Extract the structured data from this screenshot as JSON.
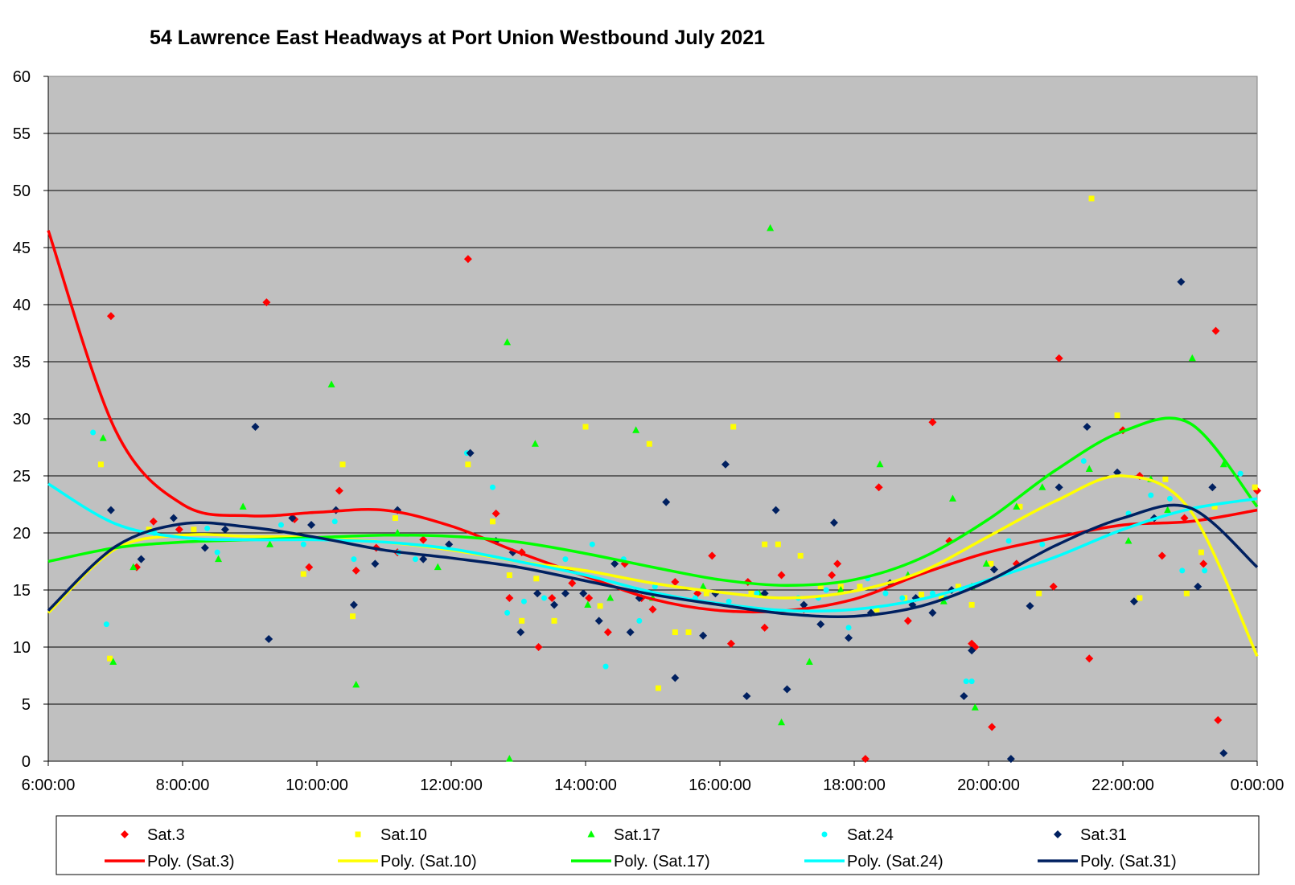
{
  "chart_data": {
    "type": "scatter",
    "title": "54 Lawrence East Headways at Port Union Westbound July 2021",
    "xlabel": "",
    "ylabel": "",
    "xlim": [
      "6:00:00",
      "0:00:00"
    ],
    "ylim": [
      0,
      60
    ],
    "x_ticks": [
      "6:00:00",
      "8:00:00",
      "10:00:00",
      "12:00:00",
      "14:00:00",
      "16:00:00",
      "18:00:00",
      "20:00:00",
      "22:00:00",
      "0:00:00"
    ],
    "y_ticks": [
      0,
      5,
      10,
      15,
      20,
      25,
      30,
      35,
      40,
      45,
      50,
      55,
      60
    ],
    "grid": true,
    "legend_position": "bottom",
    "series": [
      {
        "name": "Sat.3",
        "color": "#ff0000",
        "marker": "diamond",
        "x": [
          "6:56",
          "7:19",
          "7:34",
          "7:57",
          "9:15",
          "9:40",
          "9:53",
          "10:20",
          "10:35",
          "10:53",
          "11:12",
          "11:35",
          "12:15",
          "12:40",
          "12:52",
          "13:03",
          "13:18",
          "13:30",
          "13:48",
          "14:03",
          "14:20",
          "14:35",
          "14:50",
          "15:00",
          "15:20",
          "15:40",
          "15:53",
          "16:10",
          "16:25",
          "16:40",
          "16:55",
          "17:15",
          "17:40",
          "17:45",
          "18:10",
          "18:22",
          "18:48",
          "19:10",
          "19:25",
          "19:45",
          "19:48",
          "20:03",
          "20:25",
          "20:58",
          "21:03",
          "21:30",
          "22:00",
          "22:15",
          "22:35",
          "22:55",
          "23:12",
          "23:23",
          "23:25",
          "0:00"
        ],
        "y": [
          39,
          17,
          21,
          20.3,
          40.2,
          21.2,
          17,
          23.7,
          16.7,
          18.7,
          18.3,
          19.4,
          44,
          21.7,
          14.3,
          18.3,
          10,
          14.3,
          15.6,
          14.3,
          11.3,
          17.3,
          14.3,
          13.3,
          15.7,
          14.7,
          18,
          10.3,
          15.7,
          11.7,
          16.3,
          13.3,
          16.3,
          17.3,
          0.2,
          24,
          12.3,
          29.7,
          19.3,
          10.3,
          10,
          3,
          17.3,
          15.3,
          35.3,
          9,
          29,
          25,
          18,
          21.3,
          17.3,
          37.7,
          3.6,
          23.7
        ]
      },
      {
        "name": "Sat.10",
        "color": "#ffff00",
        "marker": "square",
        "x": [
          "6:47",
          "6:55",
          "7:30",
          "8:10",
          "9:48",
          "10:23",
          "10:32",
          "11:10",
          "12:15",
          "12:37",
          "12:52",
          "13:03",
          "13:16",
          "13:32",
          "14:00",
          "14:13",
          "14:57",
          "15:05",
          "15:20",
          "15:32",
          "15:48",
          "16:12",
          "16:28",
          "16:40",
          "16:52",
          "17:12",
          "17:30",
          "17:48",
          "18:05",
          "18:20",
          "18:45",
          "19:00",
          "19:18",
          "19:33",
          "19:45",
          "20:02",
          "20:28",
          "20:45",
          "21:32",
          "21:55",
          "22:15",
          "22:38",
          "22:57",
          "23:10",
          "23:22",
          "23:58"
        ],
        "y": [
          26,
          9,
          20.3,
          20.3,
          16.4,
          26,
          12.7,
          21.3,
          26,
          21,
          16.3,
          12.3,
          16,
          12.3,
          29.3,
          13.6,
          27.8,
          6.4,
          11.3,
          11.3,
          14.7,
          29.3,
          14.7,
          19,
          19,
          18,
          15.3,
          15.3,
          15.3,
          13.3,
          14.3,
          14.6,
          14.3,
          15.3,
          13.7,
          17.3,
          22.3,
          14.7,
          49.3,
          30.3,
          14.3,
          24.7,
          14.7,
          18.3,
          22.3,
          24
        ]
      },
      {
        "name": "Sat.17",
        "color": "#00ff00",
        "marker": "triangle",
        "x": [
          "6:49",
          "6:58",
          "7:16",
          "8:32",
          "8:54",
          "9:18",
          "10:13",
          "10:35",
          "11:12",
          "11:48",
          "12:50",
          "12:52",
          "13:15",
          "14:02",
          "14:22",
          "14:45",
          "15:00",
          "15:45",
          "16:35",
          "16:45",
          "16:55",
          "17:20",
          "17:48",
          "18:23",
          "18:48",
          "19:20",
          "19:28",
          "19:45",
          "19:48",
          "19:58",
          "20:25",
          "20:48",
          "21:30",
          "22:05",
          "22:25",
          "22:40",
          "23:02",
          "23:30"
        ],
        "y": [
          28.3,
          8.7,
          17,
          17.7,
          22.3,
          19,
          33,
          6.7,
          20,
          17,
          36.7,
          0.2,
          27.8,
          13.7,
          14.3,
          29,
          14.3,
          15.3,
          14.7,
          46.7,
          3.4,
          8.7,
          15,
          26,
          16.3,
          14,
          23,
          15.3,
          4.7,
          17.3,
          22.3,
          24,
          25.6,
          19.3,
          24.7,
          22,
          35.3,
          26
        ]
      },
      {
        "name": "Sat.24",
        "color": "#00ffff",
        "marker": "circle",
        "x": [
          "6:40",
          "6:52",
          "7:35",
          "8:22",
          "8:31",
          "9:28",
          "9:48",
          "10:16",
          "10:33",
          "11:13",
          "11:28",
          "12:14",
          "12:37",
          "12:50",
          "13:05",
          "13:23",
          "13:42",
          "14:06",
          "14:18",
          "14:34",
          "14:48",
          "15:02",
          "15:38",
          "16:08",
          "16:33",
          "17:10",
          "17:28",
          "17:35",
          "17:55",
          "18:12",
          "18:28",
          "18:43",
          "19:10",
          "19:22",
          "19:36",
          "19:40",
          "19:45",
          "20:18",
          "20:48",
          "21:25",
          "22:05",
          "22:25",
          "22:42",
          "22:53",
          "23:13",
          "23:45"
        ],
        "y": [
          28.8,
          12,
          20,
          20.4,
          18.3,
          20.7,
          19,
          21,
          17.7,
          18.3,
          17.7,
          27,
          24,
          13,
          14,
          14.3,
          17.7,
          19,
          8.3,
          17.7,
          12.3,
          15.3,
          14.3,
          14,
          14.7,
          14.3,
          14.3,
          15,
          11.7,
          16,
          14.7,
          14.3,
          14.7,
          14.3,
          15,
          7,
          7,
          19.3,
          19,
          26.3,
          21.7,
          23.3,
          23,
          16.7,
          16.7,
          25.2
        ]
      },
      {
        "name": "Sat.31",
        "color": "#002060",
        "marker": "diamond",
        "x": [
          "6:56",
          "7:23",
          "7:52",
          "8:20",
          "8:38",
          "9:05",
          "9:17",
          "9:38",
          "9:55",
          "10:17",
          "10:33",
          "10:52",
          "11:12",
          "11:35",
          "11:58",
          "12:17",
          "12:40",
          "12:55",
          "13:02",
          "13:17",
          "13:32",
          "13:42",
          "13:58",
          "14:12",
          "14:26",
          "14:40",
          "14:48",
          "15:12",
          "15:20",
          "15:45",
          "15:56",
          "16:05",
          "16:24",
          "16:40",
          "16:50",
          "17:00",
          "17:15",
          "17:30",
          "17:42",
          "17:55",
          "18:15",
          "18:32",
          "18:52",
          "18:55",
          "19:10",
          "19:27",
          "19:38",
          "19:45",
          "20:05",
          "20:20",
          "20:37",
          "21:03",
          "21:28",
          "21:55",
          "22:10",
          "22:28",
          "22:52",
          "23:07",
          "23:20",
          "23:30"
        ],
        "y": [
          22,
          17.7,
          21.3,
          18.7,
          20.3,
          29.3,
          10.7,
          21.3,
          20.7,
          22,
          13.7,
          17.3,
          22,
          17.7,
          19,
          27,
          19.3,
          18.3,
          11.3,
          14.7,
          13.7,
          14.7,
          14.7,
          12.3,
          17.3,
          11.3,
          14.3,
          22.7,
          7.3,
          11,
          14.7,
          26,
          5.7,
          14.7,
          22,
          6.3,
          13.7,
          12,
          20.9,
          10.8,
          13,
          15.6,
          13.7,
          14.3,
          13,
          15,
          5.7,
          9.7,
          16.8,
          0.2,
          13.6,
          24,
          29.3,
          25.3,
          14,
          21.3,
          42,
          15.3,
          24,
          0.7
        ]
      }
    ],
    "trendlines": [
      {
        "name": "Poly. (Sat.3)",
        "color": "#ff0000",
        "x": [
          6,
          7,
          8,
          9,
          10,
          11,
          12,
          13,
          14,
          15,
          16,
          17,
          18,
          19,
          20,
          21,
          22,
          23,
          24
        ],
        "y": [
          46.5,
          29,
          22.5,
          21.5,
          21.8,
          22,
          20.6,
          18.3,
          16.2,
          14.2,
          13.2,
          13.2,
          14.2,
          16.4,
          18.3,
          19.6,
          20.7,
          21,
          22
        ]
      },
      {
        "name": "Poly. (Sat.10)",
        "color": "#ffff00",
        "x": [
          6,
          7,
          8,
          9,
          10,
          11,
          12,
          13,
          14,
          15,
          16,
          17,
          18,
          19,
          20,
          21,
          22,
          23,
          24
        ],
        "y": [
          13,
          18.6,
          19.8,
          19.7,
          19.6,
          19.2,
          18.5,
          17.5,
          16.7,
          15.6,
          14.8,
          14.3,
          14.9,
          16.6,
          19.7,
          22.8,
          25,
          22,
          9.2
        ]
      },
      {
        "name": "Poly. (Sat.17)",
        "color": "#00ff00",
        "x": [
          6,
          7,
          8,
          9,
          10,
          11,
          12,
          13,
          14,
          15,
          16,
          17,
          18,
          19,
          20,
          21,
          22,
          23,
          24
        ],
        "y": [
          17.5,
          18.7,
          19.2,
          19.4,
          19.6,
          19.8,
          19.7,
          19.2,
          18.2,
          17,
          15.9,
          15.4,
          15.9,
          17.8,
          21.2,
          25.5,
          28.9,
          29.6,
          22.3
        ]
      },
      {
        "name": "Poly. (Sat.24)",
        "color": "#00ffff",
        "x": [
          6,
          7,
          8,
          9,
          10,
          11,
          12,
          13,
          14,
          15,
          16,
          17,
          18,
          19,
          20,
          21,
          22,
          23,
          24
        ],
        "y": [
          24.3,
          20.8,
          19.6,
          19.4,
          19.4,
          19.2,
          18.6,
          17.5,
          16.3,
          14.8,
          13.8,
          13.2,
          13.3,
          14.2,
          15.9,
          17.9,
          20.3,
          22.1,
          23
        ]
      },
      {
        "name": "Poly. (Sat.31)",
        "color": "#002060",
        "x": [
          6,
          7,
          8,
          9,
          10,
          11,
          12,
          13,
          14,
          15,
          16,
          17,
          18,
          19,
          20,
          21,
          22,
          23,
          24
        ],
        "y": [
          13.2,
          18.8,
          20.8,
          20.5,
          19.6,
          18.5,
          17.8,
          17,
          15.8,
          14.6,
          13.7,
          12.9,
          12.7,
          13.6,
          15.8,
          18.9,
          21.3,
          22.2,
          17
        ]
      }
    ]
  }
}
